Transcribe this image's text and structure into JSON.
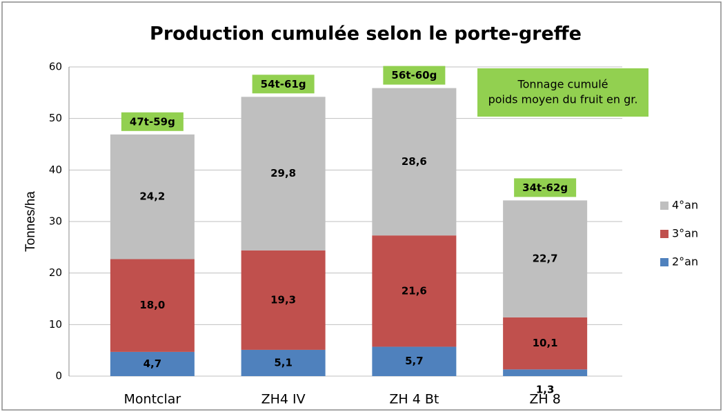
{
  "chart_data": {
    "type": "stacked_bar",
    "title": "Production cumulée selon le porte-greffe",
    "y_label": "Tonnes/ha",
    "categories": [
      "Montclar",
      "ZH4 IV",
      "ZH 4 Bt",
      "ZH 8"
    ],
    "series": [
      {
        "name": "2°an",
        "color": "#4f81bd",
        "values": [
          4.7,
          5.1,
          5.7,
          1.3
        ],
        "value_labels": [
          "4,7",
          "5,1",
          "5,7",
          "1,3"
        ]
      },
      {
        "name": "3°an",
        "color": "#c0504d",
        "values": [
          18.0,
          19.3,
          21.6,
          10.1
        ],
        "value_labels": [
          "18,0",
          "19,3",
          "21,6",
          "10,1"
        ]
      },
      {
        "name": "4°an",
        "color": "#bfbfbf",
        "values": [
          24.2,
          29.8,
          28.6,
          22.7
        ],
        "value_labels": [
          "24,2",
          "29,8",
          "28,6",
          "22,7"
        ]
      }
    ],
    "bar_annotations": [
      "47t-59g",
      "54t-61g",
      "56t-60g",
      "34t-62g"
    ],
    "annotation_box": [
      "Tonnage cumulé",
      "poids moyen du fruit en gr."
    ],
    "annotation_color": "#92d050",
    "ylim": [
      0,
      60
    ],
    "yticks": [
      0,
      10,
      20,
      30,
      40,
      50,
      60
    ],
    "grid": true,
    "legend": "right"
  }
}
